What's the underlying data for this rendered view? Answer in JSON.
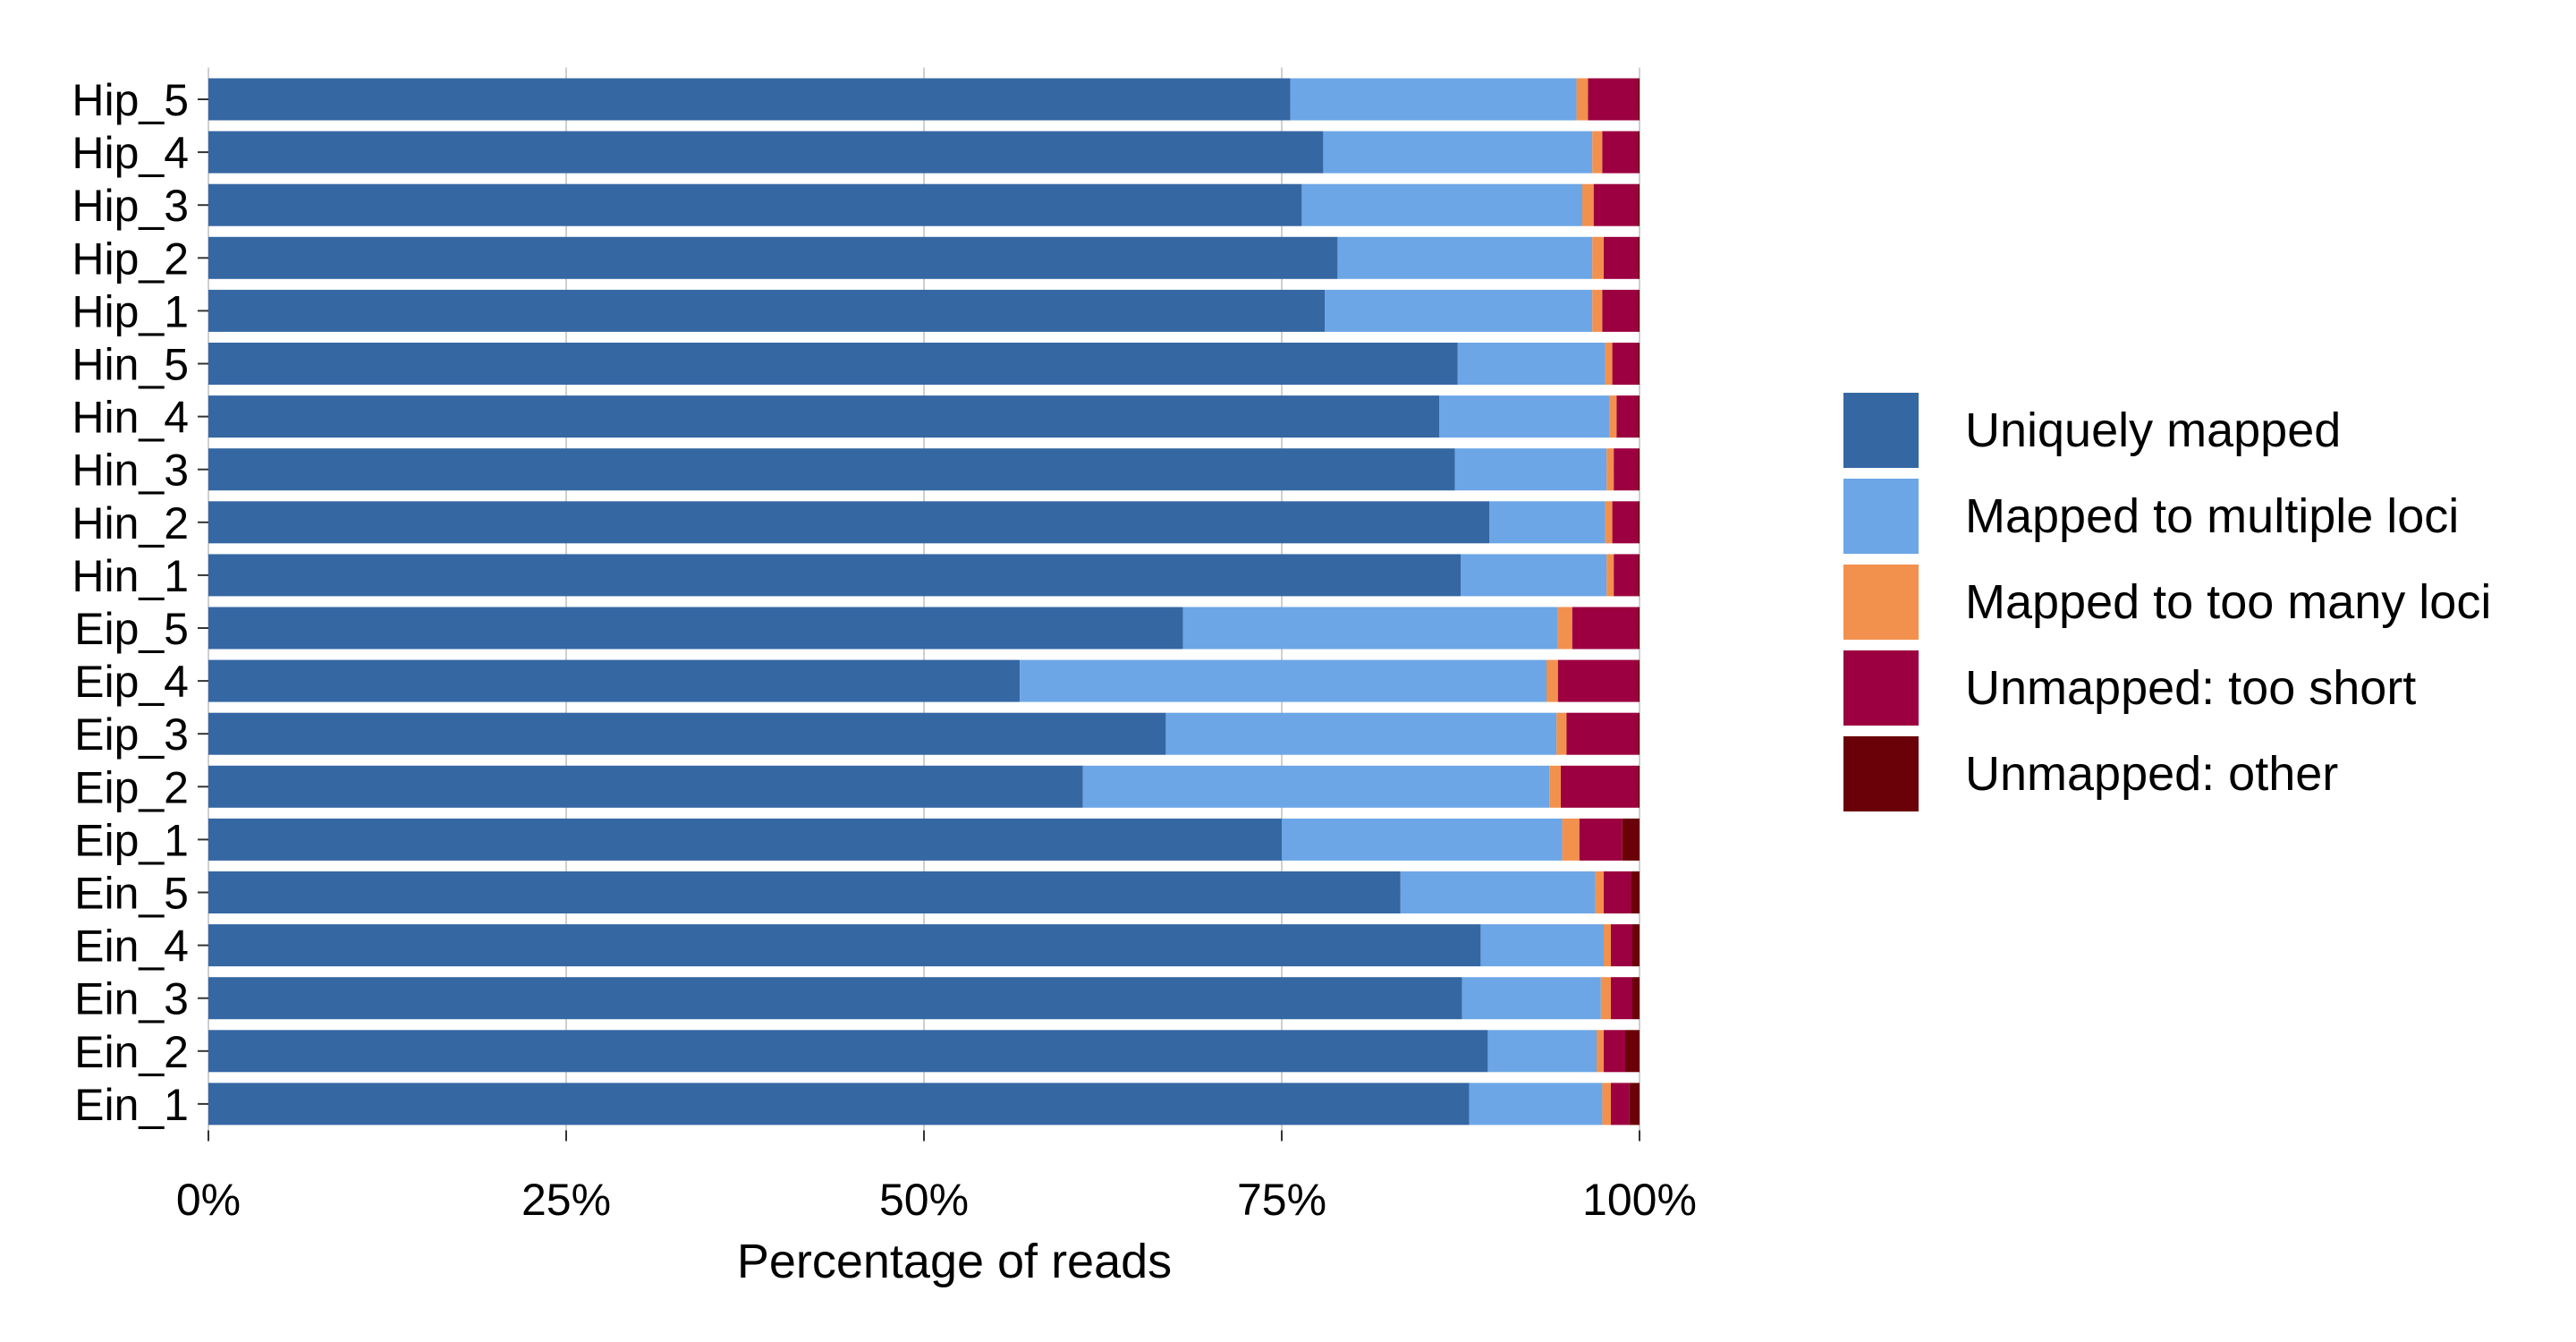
{
  "chart_data": {
    "type": "bar",
    "orientation": "horizontal",
    "stacked": true,
    "categories": [
      "Hip_5",
      "Hip_4",
      "Hip_3",
      "Hip_2",
      "Hip_1",
      "Hin_5",
      "Hin_4",
      "Hin_3",
      "Hin_2",
      "Hin_1",
      "Eip_5",
      "Eip_4",
      "Eip_3",
      "Eip_2",
      "Eip_1",
      "Ein_5",
      "Ein_4",
      "Ein_3",
      "Ein_2",
      "Ein_1"
    ],
    "series": [
      {
        "name": "Uniquely mapped",
        "color": "#3567a3",
        "values": [
          75.6,
          77.9,
          76.4,
          78.9,
          78.0,
          87.3,
          86.0,
          87.1,
          89.5,
          87.5,
          68.1,
          56.7,
          66.9,
          61.1,
          75.0,
          83.3,
          88.9,
          87.6,
          89.4,
          88.1
        ]
      },
      {
        "name": "Mapped to multiple loci",
        "color": "#6ca6e6",
        "values": [
          20.0,
          18.8,
          19.6,
          17.8,
          18.7,
          10.3,
          11.9,
          10.6,
          8.1,
          10.2,
          26.2,
          36.8,
          27.3,
          32.6,
          19.6,
          13.6,
          8.6,
          9.7,
          7.6,
          9.3
        ]
      },
      {
        "name": "Mapped to too many loci",
        "color": "#f2914e",
        "values": [
          0.8,
          0.7,
          0.8,
          0.8,
          0.7,
          0.5,
          0.5,
          0.5,
          0.5,
          0.5,
          1.0,
          0.8,
          0.7,
          0.8,
          1.2,
          0.6,
          0.5,
          0.7,
          0.5,
          0.6
        ]
      },
      {
        "name": "Unmapped: too short",
        "color": "#9c0040",
        "values": [
          3.5,
          2.5,
          3.1,
          2.4,
          2.5,
          1.8,
          1.5,
          1.7,
          1.8,
          1.7,
          4.6,
          5.6,
          5.0,
          5.4,
          3.0,
          1.9,
          1.5,
          1.5,
          1.5,
          1.3
        ]
      },
      {
        "name": "Unmapped: other",
        "color": "#6a0008",
        "values": [
          0.1,
          0.1,
          0.1,
          0.1,
          0.1,
          0.1,
          0.1,
          0.1,
          0.1,
          0.1,
          0.1,
          0.1,
          0.1,
          0.1,
          1.2,
          0.6,
          0.5,
          0.5,
          1.0,
          0.7
        ]
      }
    ],
    "xlabel": "Percentage of reads",
    "ylabel": "",
    "title": "",
    "xlim": [
      0,
      100
    ],
    "xticks": [
      "0%",
      "25%",
      "50%",
      "75%",
      "100%"
    ],
    "grid": true,
    "legend_position": "right"
  }
}
